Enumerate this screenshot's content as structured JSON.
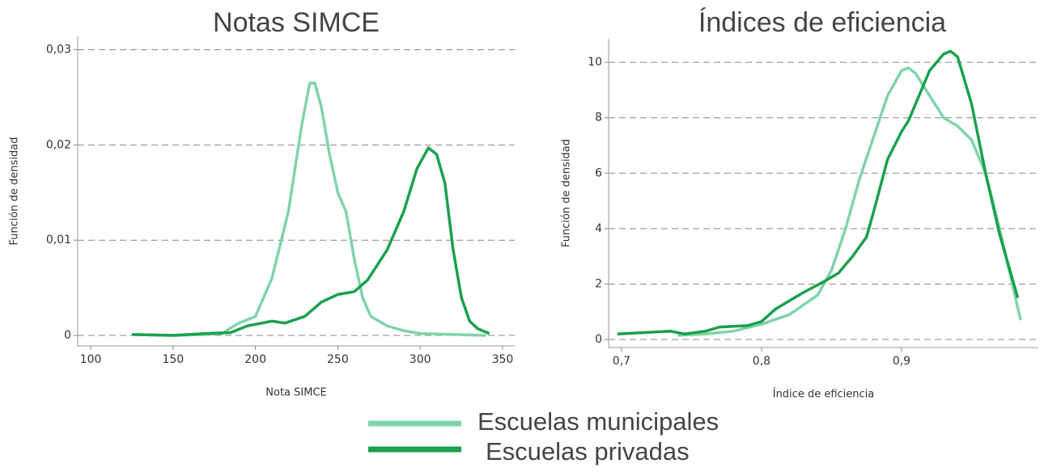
{
  "chart_data": [
    {
      "type": "line",
      "title": "Notas SIMCE",
      "xlabel": "Nota SIMCE",
      "ylabel": "Función de densidad",
      "xlim": [
        92.1,
        357.4
      ],
      "ylim": [
        -0.0011,
        0.0314
      ],
      "xticks": [
        100,
        150,
        200,
        250,
        300,
        350
      ],
      "yticks": [
        0,
        {
          "value": 0.01,
          "label": "0,01"
        },
        {
          "value": 0.02,
          "label": "0,02"
        },
        {
          "value": 0.03,
          "label": "0,03"
        }
      ],
      "grid": true,
      "series": [
        {
          "name": "Escuelas municipales",
          "color": "#80d4a8",
          "x": [
            125,
            150,
            170,
            180,
            185,
            190,
            200,
            210,
            220,
            228,
            233,
            236,
            240,
            245,
            250,
            255,
            260,
            265,
            270,
            280,
            290,
            300,
            320,
            340
          ],
          "values": [
            0.0001,
            0,
            0.0001,
            0.0002,
            0.0008,
            0.0013,
            0.002,
            0.006,
            0.013,
            0.022,
            0.0265,
            0.0265,
            0.024,
            0.019,
            0.015,
            0.013,
            0.008,
            0.004,
            0.002,
            0.001,
            0.0005,
            0.0002,
            0.0001,
            0
          ]
        },
        {
          "name": "Escuelas privadas",
          "color": "#1aa04e",
          "x": [
            125,
            150,
            170,
            185,
            195,
            210,
            218,
            230,
            240,
            250,
            260,
            268,
            280,
            290,
            298,
            305,
            310,
            315,
            320,
            325,
            330,
            335,
            342
          ],
          "values": [
            0.0001,
            0,
            0.0002,
            0.0003,
            0.001,
            0.0015,
            0.0013,
            0.002,
            0.0035,
            0.0043,
            0.0046,
            0.0058,
            0.009,
            0.013,
            0.0175,
            0.0197,
            0.019,
            0.016,
            0.009,
            0.004,
            0.0015,
            0.0007,
            0.0002
          ]
        }
      ]
    },
    {
      "type": "line",
      "title": "Índices de eficiencia",
      "xlabel": "Índice de eficiencia",
      "ylabel": "Función de densidad",
      "xlim": [
        0.6908,
        0.9977
      ],
      "ylim": [
        -0.29,
        10.85
      ],
      "xticks": [
        {
          "value": 0.7,
          "label": "0,7"
        },
        {
          "value": 0.8,
          "label": "0,8"
        },
        {
          "value": 0.9,
          "label": "0,9"
        }
      ],
      "yticks": [
        0,
        2,
        4,
        6,
        8,
        10
      ],
      "grid": true,
      "series": [
        {
          "name": "Escuelas municipales",
          "color": "#80d4a8",
          "x": [
            0.74,
            0.76,
            0.78,
            0.8,
            0.82,
            0.84,
            0.85,
            0.86,
            0.87,
            0.88,
            0.89,
            0.9,
            0.905,
            0.91,
            0.92,
            0.93,
            0.94,
            0.95,
            0.96,
            0.97,
            0.98,
            0.985
          ],
          "values": [
            0.15,
            0.2,
            0.3,
            0.55,
            0.9,
            1.6,
            2.5,
            4.0,
            5.8,
            7.3,
            8.8,
            9.7,
            9.8,
            9.6,
            8.8,
            8.0,
            7.7,
            7.2,
            6.0,
            4.0,
            1.8,
            0.7
          ]
        },
        {
          "name": "Escuelas privadas",
          "color": "#1aa04e",
          "x": [
            0.697,
            0.735,
            0.745,
            0.76,
            0.77,
            0.79,
            0.8,
            0.81,
            0.83,
            0.845,
            0.855,
            0.865,
            0.875,
            0.88,
            0.89,
            0.9,
            0.905,
            0.91,
            0.92,
            0.93,
            0.935,
            0.94,
            0.95,
            0.96,
            0.97,
            0.983
          ],
          "values": [
            0.2,
            0.3,
            0.2,
            0.3,
            0.45,
            0.5,
            0.65,
            1.1,
            1.7,
            2.1,
            2.4,
            3.0,
            3.7,
            4.6,
            6.5,
            7.5,
            7.9,
            8.5,
            9.7,
            10.3,
            10.4,
            10.2,
            8.5,
            6.0,
            3.8,
            1.5
          ]
        }
      ]
    }
  ]
}
